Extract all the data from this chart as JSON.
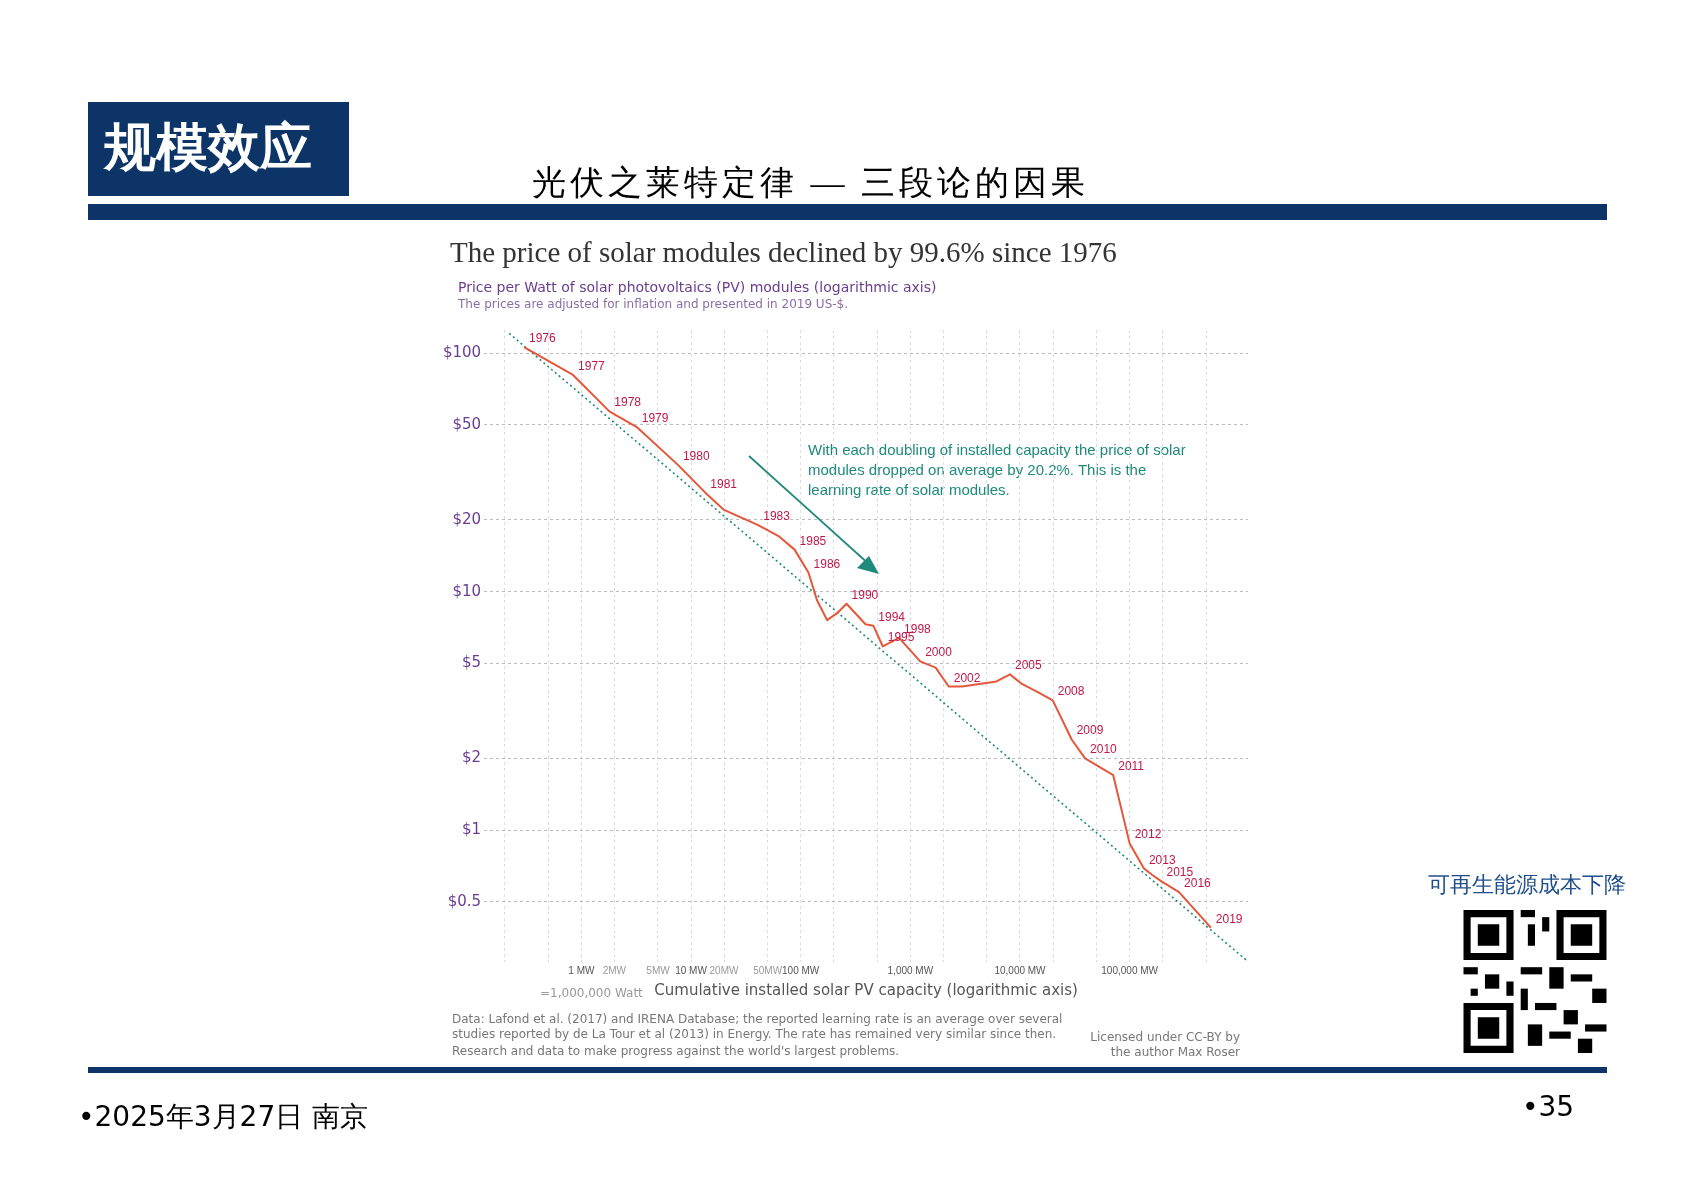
{
  "chart_data": {
    "type": "line",
    "title": "The price of solar modules declined by 99.6% since 1976",
    "subtitle": "Price per Watt of solar photovoltaics (PV) modules (logarithmic axis)",
    "xlabel": "Cumulative installed solar PV capacity (logarithmic axis)",
    "log": "xy",
    "grid": true,
    "xlim": [
      0.13,
      1200000
    ],
    "ylim": [
      0.28,
      125
    ],
    "xticks": [
      {
        "value": 0.2,
        "label": null
      },
      {
        "value": 0.5,
        "label": null
      },
      {
        "value": 1,
        "label": "1 MW"
      },
      {
        "value": 2,
        "label": "2MW"
      },
      {
        "value": 5,
        "label": "5MW"
      },
      {
        "value": 10,
        "label": "10 MW"
      },
      {
        "value": 20,
        "label": "20MW"
      },
      {
        "value": 50,
        "label": "50MW"
      },
      {
        "value": 100,
        "label": "100 MW"
      },
      {
        "value": 200,
        "label": null
      },
      {
        "value": 500,
        "label": null
      },
      {
        "value": 1000,
        "label": "1,000 MW"
      },
      {
        "value": 2000,
        "label": null
      },
      {
        "value": 5000,
        "label": null
      },
      {
        "value": 10000,
        "label": "10,000 MW"
      },
      {
        "value": 20000,
        "label": null
      },
      {
        "value": 50000,
        "label": null
      },
      {
        "value": 100000,
        "label": "100,000 MW"
      },
      {
        "value": 200000,
        "label": null
      },
      {
        "value": 500000,
        "label": null
      }
    ],
    "yticks": [
      {
        "value": 0.5,
        "label": "$0.5"
      },
      {
        "value": 1,
        "label": "$1"
      },
      {
        "value": 2,
        "label": "$2"
      },
      {
        "value": 5,
        "label": "$5"
      },
      {
        "value": 10,
        "label": "$10"
      },
      {
        "value": 20,
        "label": "$20"
      },
      {
        "value": 50,
        "label": "$50"
      },
      {
        "value": 100,
        "label": "$100"
      }
    ],
    "series": [
      {
        "color": "#e5573b",
        "x": [
          0.3,
          0.84,
          1.8,
          3.2,
          7.6,
          13.5,
          20,
          41,
          64,
          88,
          118,
          141,
          174,
          214,
          262,
          390,
          460,
          560,
          790,
          1230,
          1700,
          2240,
          2960,
          4260,
          6100,
          8100,
          10400,
          14400,
          19900,
          29600,
          39200,
          70800,
          100000,
          135000,
          160000,
          195000,
          282000,
          550000
        ],
        "values": [
          106,
          81,
          57,
          49,
          34,
          26,
          22,
          19,
          17,
          15,
          12,
          9.2,
          7.6,
          8.1,
          8.9,
          7.3,
          7.2,
          5.9,
          6.4,
          5.1,
          4.8,
          4.0,
          4.0,
          4.1,
          4.2,
          4.5,
          4.1,
          3.8,
          3.5,
          2.4,
          2.0,
          1.7,
          0.88,
          0.69,
          0.65,
          0.61,
          0.55,
          0.39
        ]
      },
      {
        "type": "line",
        "line_style": "dotted",
        "color": "#1f8a7c",
        "x": [
          0.22,
          1160000
        ],
        "values": [
          121,
          0.285
        ]
      }
    ],
    "annotations": [
      "The prices are adjusted for inflation and presented in 2019 US-$.",
      "With each doubling of installed capacity the price of solar modules dropped on average by 20.2%. This is the learning rate of solar modules.",
      "=1,000,000 Watt",
      "Data: Lafond et al. (2017) and IRENA Database; the reported learning rate is an average over several studies reported by de La Tour et al (2013) in Energy. The rate has remained very similar since then.",
      "Research and data to make progress against the world's largest problems.",
      "Licensed under CC-BY by the author Max Roser",
      "规模效应",
      "光伏之莱特定律 — 三段论的因果",
      "可再生能源成本下降",
      "•2025年3月27日 南京",
      "•35",
      {
        "text": "1976",
        "x": 0.3,
        "y": 106
      },
      {
        "text": "1977",
        "x": 0.84,
        "y": 81
      },
      {
        "text": "1978",
        "x": 1.8,
        "y": 57
      },
      {
        "text": "1979",
        "x": 3.2,
        "y": 49
      },
      {
        "text": "1980",
        "x": 7.6,
        "y": 34
      },
      {
        "text": "1981",
        "x": 13.5,
        "y": 26
      },
      {
        "text": "1983",
        "x": 41,
        "y": 19
      },
      {
        "text": "1985",
        "x": 88,
        "y": 15
      },
      {
        "text": "1986",
        "x": 118,
        "y": 12
      },
      {
        "text": "1990",
        "x": 262,
        "y": 8.9
      },
      {
        "text": "1994",
        "x": 460,
        "y": 7.2
      },
      {
        "text": "1995",
        "x": 560,
        "y": 5.9
      },
      {
        "text": "1998",
        "x": 790,
        "y": 6.4
      },
      {
        "text": "2000",
        "x": 1230,
        "y": 5.1
      },
      {
        "text": "2002",
        "x": 2240,
        "y": 4.0
      },
      {
        "text": "2005",
        "x": 8100,
        "y": 4.5
      },
      {
        "text": "2008",
        "x": 19900,
        "y": 3.5
      },
      {
        "text": "2009",
        "x": 29600,
        "y": 2.4
      },
      {
        "text": "2010",
        "x": 39200,
        "y": 2.0
      },
      {
        "text": "2011",
        "x": 70800,
        "y": 1.7
      },
      {
        "text": "2012",
        "x": 100000,
        "y": 0.88
      },
      {
        "text": "2013",
        "x": 135000,
        "y": 0.69
      },
      {
        "text": "2015",
        "x": 195000,
        "y": 0.61
      },
      {
        "text": "2016",
        "x": 282000,
        "y": 0.55
      },
      {
        "text": "2019",
        "x": 550000,
        "y": 0.39
      }
    ]
  }
}
